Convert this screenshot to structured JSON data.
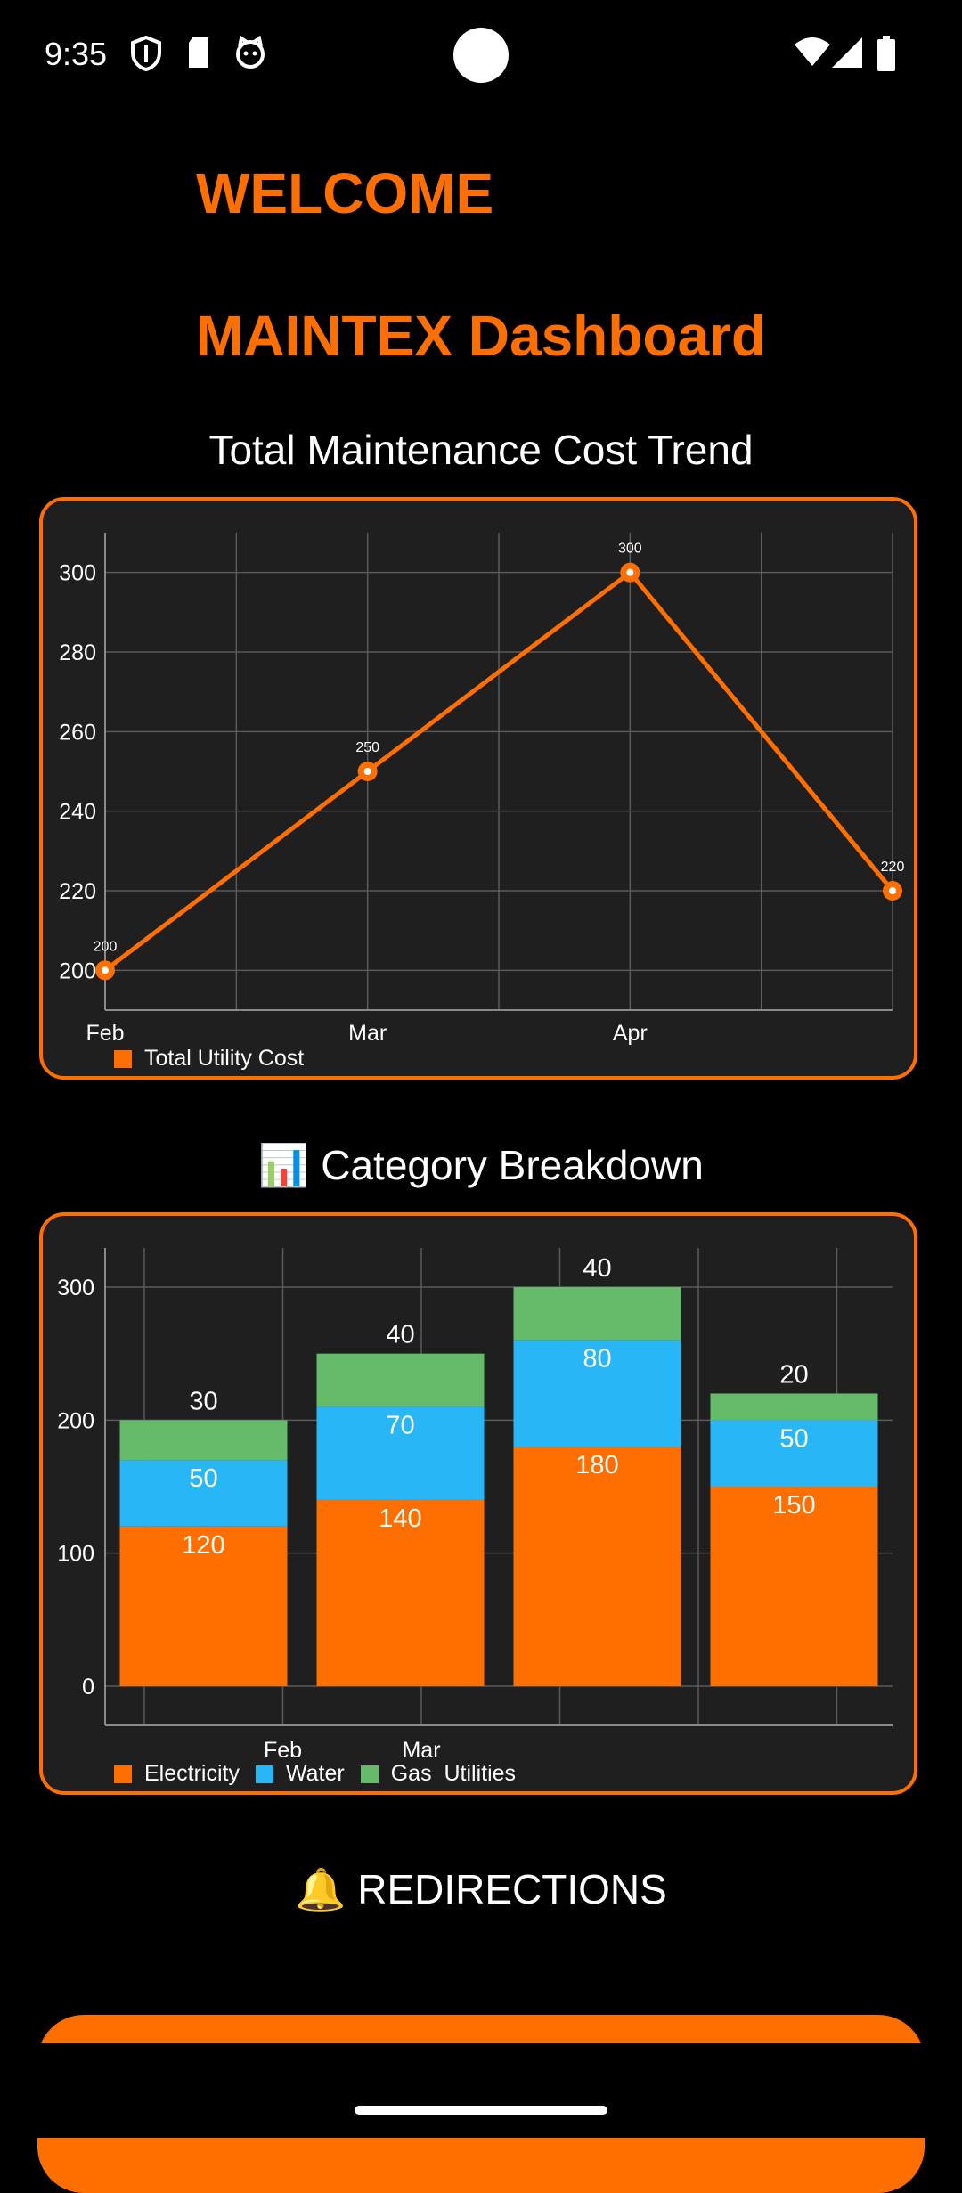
{
  "status_bar": {
    "time": "9:35"
  },
  "header": {
    "welcome": "WELCOME",
    "dashboard_title": "MAINTEX Dashboard"
  },
  "sections": {
    "trend_title": "Total Maintenance Cost Trend",
    "breakdown_icon": "📊",
    "breakdown_title": "Category Breakdown",
    "redirections_icon": "🔔",
    "redirections_title": "REDIRECTIONS"
  },
  "colors": {
    "accent": "#FF6F00",
    "electricity": "#FF6F00",
    "water": "#29B6F6",
    "gas": "#66BB6A",
    "card_bg": "#1f1f1f"
  },
  "chart_data": [
    {
      "type": "line",
      "x": [
        "Feb",
        "Mar",
        "Apr",
        ""
      ],
      "x_tick_labels": [
        "Feb",
        "Mar",
        "Apr"
      ],
      "series": [
        {
          "name": "Total Utility Cost",
          "values": [
            200,
            250,
            300,
            220
          ]
        }
      ],
      "data_labels": [
        "200",
        "250",
        "300",
        "220"
      ],
      "y_ticks": [
        "200",
        "220",
        "240",
        "260",
        "280",
        "300"
      ],
      "ylim": [
        190,
        310
      ],
      "grid": true,
      "legend": "bottom-left"
    },
    {
      "type": "bar",
      "stacked": true,
      "categories": [
        "",
        "Feb",
        "Mar",
        ""
      ],
      "x_tick_labels": [
        "Feb",
        "Mar"
      ],
      "series": [
        {
          "name": "Electricity",
          "values": [
            120,
            140,
            180,
            150
          ]
        },
        {
          "name": "Water",
          "values": [
            50,
            70,
            80,
            50
          ]
        },
        {
          "name": "Gas  Utilities",
          "values": [
            30,
            40,
            40,
            20
          ]
        }
      ],
      "labels": [
        [
          "",
          "",
          "",
          ""
        ],
        [
          "120",
          "140",
          "180",
          "150"
        ],
        [
          "50",
          "70",
          "80",
          "50"
        ],
        [
          "30",
          "40",
          "40",
          "20"
        ]
      ],
      "y_ticks": [
        "0",
        "100",
        "200",
        "300"
      ],
      "ylim": [
        0,
        300
      ],
      "grid": true,
      "legend": "bottom-left"
    }
  ]
}
